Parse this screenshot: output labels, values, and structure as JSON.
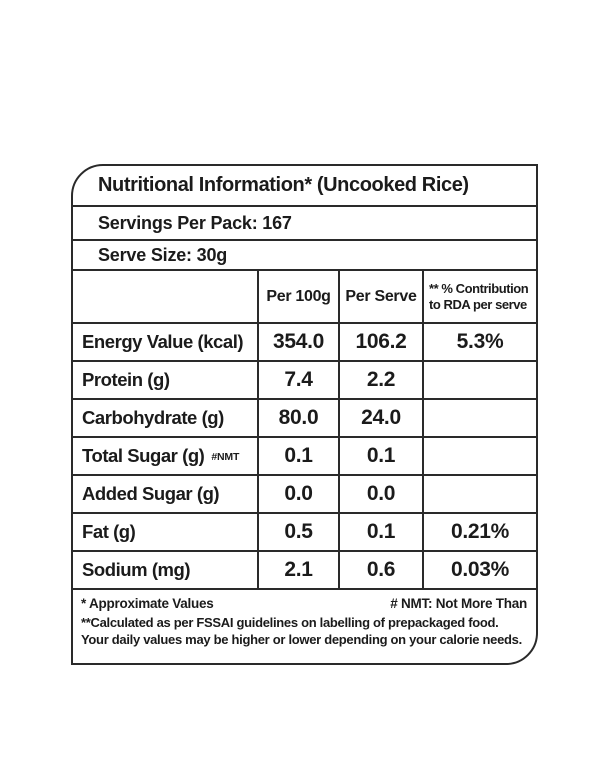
{
  "label": {
    "title": "Nutritional Information* (Uncooked Rice)",
    "servings_per_pack": "Servings Per Pack: 167",
    "serve_size": "Serve Size: 30g",
    "columns": [
      "",
      "Per 100g",
      "Per Serve",
      "** % Contribution to RDA per serve"
    ],
    "rows": [
      {
        "name": "Energy Value (kcal)",
        "note": "",
        "per_100g": "354.0",
        "per_serve": "106.2",
        "rda_per_serve": "5.3%"
      },
      {
        "name": "Protein (g)",
        "note": "",
        "per_100g": "7.4",
        "per_serve": "2.2",
        "rda_per_serve": ""
      },
      {
        "name": "Carbohydrate (g)",
        "note": "",
        "per_100g": "80.0",
        "per_serve": "24.0",
        "rda_per_serve": ""
      },
      {
        "name": "Total Sugar (g)",
        "note": "#NMT",
        "per_100g": "0.1",
        "per_serve": "0.1",
        "rda_per_serve": ""
      },
      {
        "name": "Added Sugar (g)",
        "note": "",
        "per_100g": "0.0",
        "per_serve": "0.0",
        "rda_per_serve": ""
      },
      {
        "name": "Fat (g)",
        "note": "",
        "per_100g": "0.5",
        "per_serve": "0.1",
        "rda_per_serve": "0.21%"
      },
      {
        "name": "Sodium (mg)",
        "note": "",
        "per_100g": "2.1",
        "per_serve": "0.6",
        "rda_per_serve": "0.03%"
      }
    ],
    "footnotes": {
      "approximate_values": "* Approximate Values",
      "nmt_definition": "# NMT: Not More Than",
      "fssai_note": "**Calculated as per FSSAI guidelines on labelling of prepackaged food. Your daily values may be higher or lower depending on your calorie needs."
    },
    "colors": {
      "border": "#2a2a2a",
      "text": "#1b1b1b",
      "background": "#ffffff"
    }
  }
}
